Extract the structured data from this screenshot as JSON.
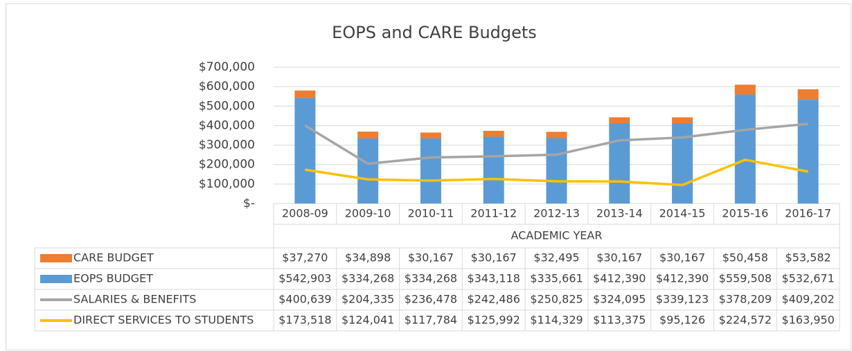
{
  "chart_data": {
    "type": "bar",
    "title": "EOPS and CARE Budgets",
    "x_label": "ACADEMIC YEAR",
    "categories": [
      "2008-09",
      "2009-10",
      "2010-11",
      "2011-12",
      "2012-13",
      "2013-14",
      "2014-15",
      "2015-16",
      "2016-17"
    ],
    "series": [
      {
        "name": "CARE BUDGET",
        "type": "bar",
        "color": "#ed7d31",
        "values": [
          37270,
          34898,
          30167,
          30167,
          32495,
          30167,
          30167,
          50458,
          53582
        ],
        "value_labels": [
          "$37,270",
          "$34,898",
          "$30,167",
          "$30,167",
          "$32,495",
          "$30,167",
          "$30,167",
          "$50,458",
          "$53,582"
        ]
      },
      {
        "name": "EOPS BUDGET",
        "type": "bar",
        "color": "#5b9bd5",
        "values": [
          542903,
          334268,
          334268,
          343118,
          335661,
          412390,
          412390,
          559508,
          532671
        ],
        "value_labels": [
          "$542,903",
          "$334,268",
          "$334,268",
          "$343,118",
          "$335,661",
          "$412,390",
          "$412,390",
          "$559,508",
          "$532,671"
        ]
      },
      {
        "name": "SALARIES & BENEFITS",
        "type": "line",
        "color": "#a5a5a5",
        "values": [
          400639,
          204335,
          236478,
          242486,
          250825,
          324095,
          339123,
          378209,
          409202
        ],
        "value_labels": [
          "$400,639",
          "$204,335",
          "$236,478",
          "$242,486",
          "$250,825",
          "$324,095",
          "$339,123",
          "$378,209",
          "$409,202"
        ]
      },
      {
        "name": "DIRECT SERVICES TO STUDENTS",
        "type": "line",
        "color": "#ffc000",
        "values": [
          173518,
          124041,
          117784,
          125992,
          114329,
          113375,
          95126,
          224572,
          163950
        ],
        "value_labels": [
          "$173,518",
          "$124,041",
          "$117,784",
          "$125,992",
          "$114,329",
          "$113,375",
          "$95,126",
          "$224,572",
          "$163,950"
        ]
      }
    ],
    "ylim": [
      0,
      700000
    ],
    "yticks": [
      {
        "value": 0,
        "label": "$-"
      },
      {
        "value": 100000,
        "label": "$100,000"
      },
      {
        "value": 200000,
        "label": "$200,000"
      },
      {
        "value": 300000,
        "label": "$300,000"
      },
      {
        "value": 400000,
        "label": "$400,000"
      },
      {
        "value": 500000,
        "label": "$500,000"
      },
      {
        "value": 600000,
        "label": "$600,000"
      },
      {
        "value": 700000,
        "label": "$700,000"
      }
    ],
    "grid": true
  }
}
